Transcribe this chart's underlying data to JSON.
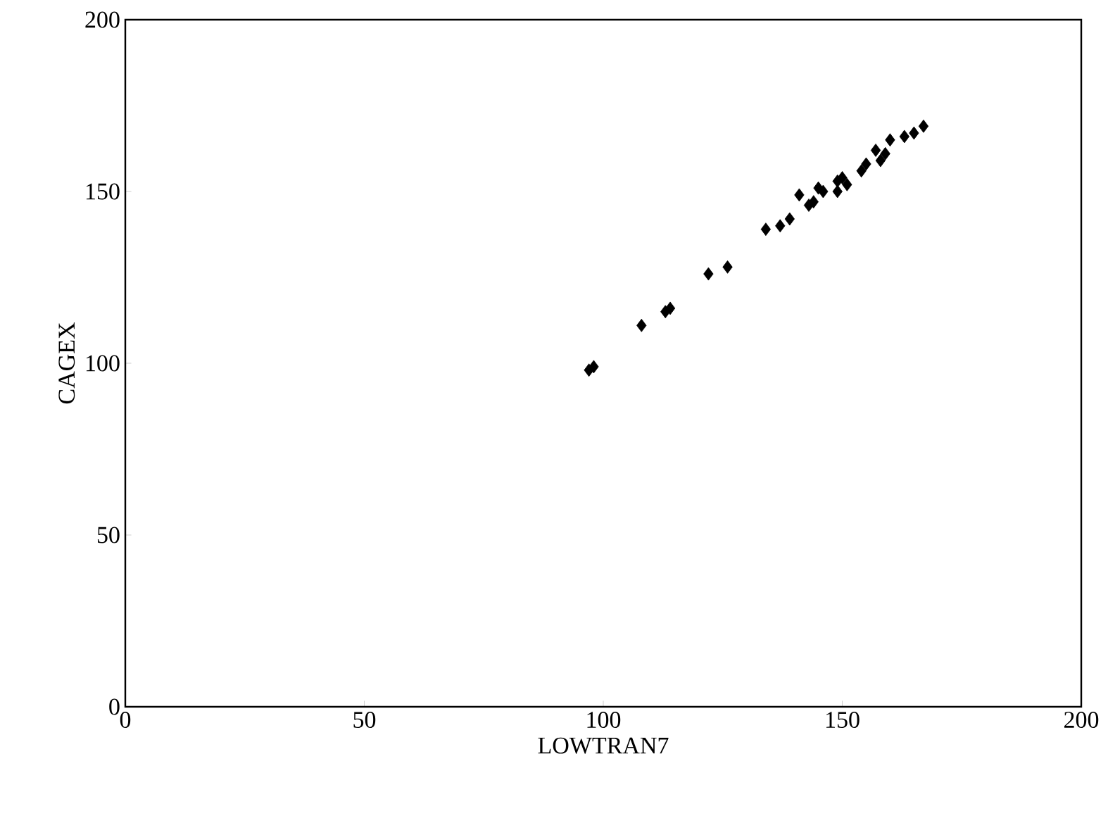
{
  "chart_data": {
    "type": "scatter",
    "xlabel": "LOWTRAN7",
    "ylabel": "CAGEX",
    "marker": "diamond",
    "xlim": [
      0,
      200
    ],
    "ylim": [
      0,
      200
    ],
    "xticks": [
      0,
      50,
      100,
      150,
      200
    ],
    "yticks": [
      0,
      50,
      100,
      150,
      200
    ],
    "series": [
      {
        "color": "#000000",
        "x": [
          97,
          98,
          108,
          113,
          114,
          122,
          126,
          134,
          137,
          139,
          141,
          143,
          144,
          145,
          146,
          149,
          149,
          150,
          151,
          154,
          155,
          157,
          158,
          159,
          160,
          163,
          165,
          167
        ],
        "values": [
          98,
          99,
          111,
          115,
          116,
          126,
          128,
          139,
          140,
          142,
          149,
          146,
          147,
          151,
          150,
          150,
          153,
          154,
          152,
          156,
          158,
          162,
          159,
          161,
          165,
          166,
          167,
          169
        ]
      }
    ]
  }
}
